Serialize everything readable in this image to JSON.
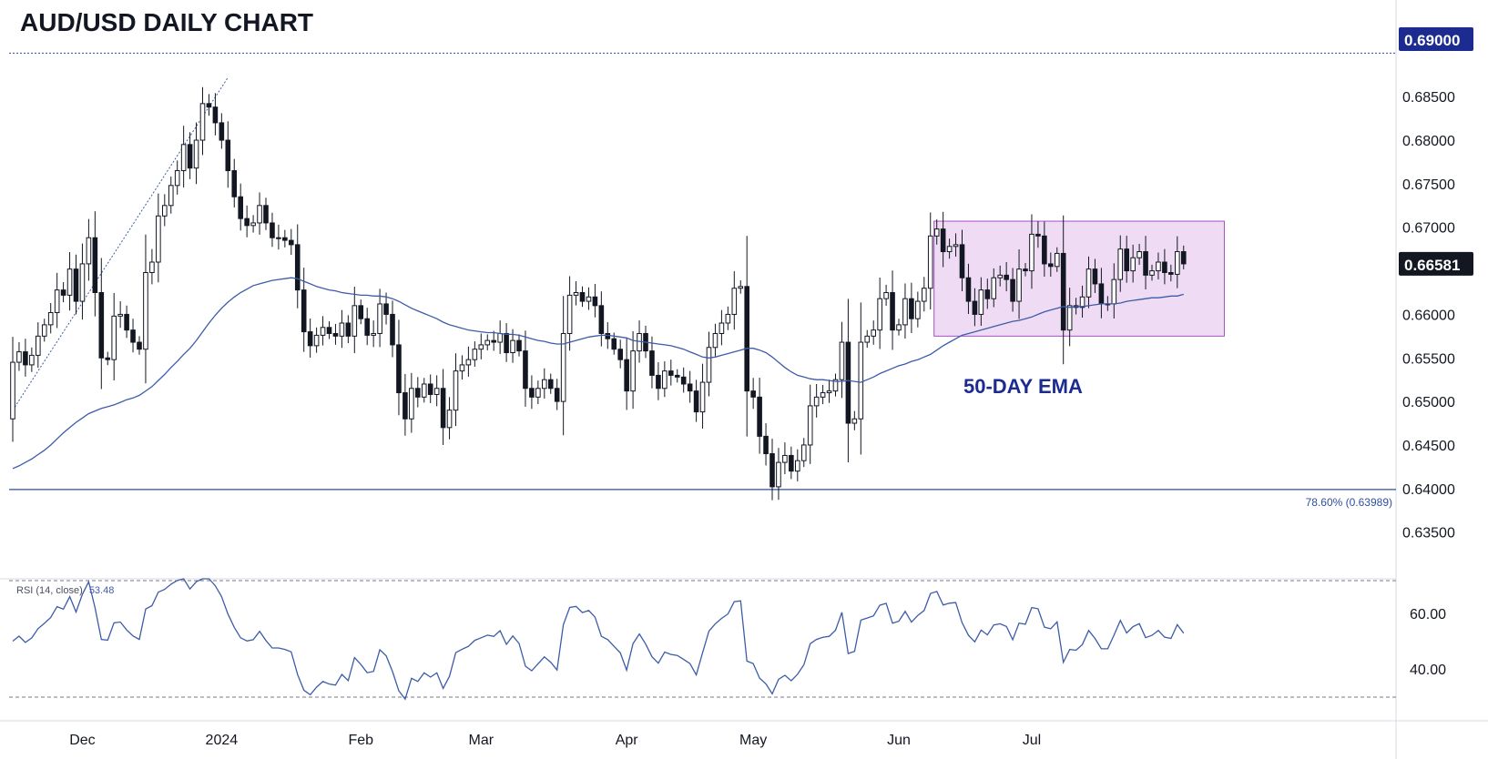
{
  "title": "AUD/USD DAILY CHART",
  "chart_data": {
    "type": "candlestick",
    "instrument": "AUD/USD",
    "timeframe": "Daily",
    "price_axis": {
      "ticks": [
        "0.68500",
        "0.68000",
        "0.67500",
        "0.67000",
        "0.66000",
        "0.65500",
        "0.65000",
        "0.64500",
        "0.64000",
        "0.63500"
      ],
      "range": [
        0.6335,
        0.6915
      ]
    },
    "date_axis": {
      "labels": [
        "Dec",
        "2024",
        "Feb",
        "Mar",
        "Apr",
        "May",
        "Jun",
        "Jul"
      ]
    },
    "series": [
      {
        "name": "AUD/USD",
        "kind": "candles",
        "open": [
          0.648,
          0.6545,
          0.6557,
          0.6542,
          0.6553,
          0.6575,
          0.6588,
          0.6602,
          0.6628,
          0.6622,
          0.6652,
          0.6615,
          0.6658,
          0.6688,
          0.6625,
          0.655,
          0.6548,
          0.6598,
          0.66,
          0.6582,
          0.6568,
          0.656,
          0.6648,
          0.666,
          0.6713,
          0.6725,
          0.6748,
          0.6765,
          0.6795,
          0.6768,
          0.68,
          0.6842,
          0.6838,
          0.682,
          0.68,
          0.6765,
          0.6735,
          0.671,
          0.6702,
          0.6705,
          0.6725,
          0.6705,
          0.6688,
          0.6688,
          0.6685,
          0.668,
          0.6628,
          0.658,
          0.6564,
          0.6576,
          0.6585,
          0.6578,
          0.6575,
          0.659,
          0.6575,
          0.661,
          0.6595,
          0.6576,
          0.6578,
          0.6612,
          0.66,
          0.6565,
          0.651,
          0.648,
          0.6515,
          0.6505,
          0.652,
          0.6508,
          0.6515,
          0.647,
          0.649,
          0.6535,
          0.6542,
          0.6548,
          0.656,
          0.6565,
          0.657,
          0.6568,
          0.6578,
          0.6556,
          0.657,
          0.6558,
          0.6515,
          0.6505,
          0.6515,
          0.6525,
          0.6515,
          0.65,
          0.6578,
          0.6622,
          0.6625,
          0.6615,
          0.662,
          0.661,
          0.6578,
          0.6572,
          0.656,
          0.6548,
          0.6512,
          0.6558,
          0.6578,
          0.6558,
          0.653,
          0.6515,
          0.6535,
          0.653,
          0.6528,
          0.652,
          0.6512,
          0.6488,
          0.6522,
          0.6562,
          0.6578,
          0.659,
          0.66,
          0.663,
          0.6632,
          0.6512,
          0.6505,
          0.646,
          0.644,
          0.6402,
          0.643,
          0.6438,
          0.642,
          0.6432,
          0.645,
          0.6495,
          0.6505,
          0.651,
          0.6512,
          0.6525,
          0.6568,
          0.6475,
          0.648,
          0.6568,
          0.6575,
          0.6582,
          0.6618,
          0.6625,
          0.6582,
          0.6588,
          0.6618,
          0.6595,
          0.6615,
          0.663,
          0.669,
          0.6698,
          0.6672,
          0.6678,
          0.668,
          0.6642,
          0.6615,
          0.66,
          0.6628,
          0.6618,
          0.6642,
          0.6645,
          0.664,
          0.6615,
          0.6652,
          0.665,
          0.6692,
          0.669,
          0.6658,
          0.6655,
          0.667,
          0.6582,
          0.661,
          0.6608,
          0.662,
          0.6652,
          0.6635,
          0.6612,
          0.6612,
          0.664,
          0.6675,
          0.665,
          0.6665,
          0.6672,
          0.6645,
          0.665,
          0.666,
          0.6648,
          0.6646,
          0.6672
        ],
        "close": [
          0.6545,
          0.6557,
          0.6542,
          0.6553,
          0.6575,
          0.6588,
          0.6602,
          0.6628,
          0.6622,
          0.6652,
          0.6615,
          0.6658,
          0.6688,
          0.6625,
          0.655,
          0.6548,
          0.6598,
          0.66,
          0.6582,
          0.6568,
          0.656,
          0.6648,
          0.666,
          0.6713,
          0.6725,
          0.6748,
          0.6765,
          0.6795,
          0.6768,
          0.68,
          0.6842,
          0.6838,
          0.682,
          0.68,
          0.6765,
          0.6735,
          0.671,
          0.6702,
          0.6705,
          0.6725,
          0.6705,
          0.6688,
          0.6688,
          0.6685,
          0.668,
          0.6628,
          0.658,
          0.6564,
          0.6576,
          0.6585,
          0.6578,
          0.6575,
          0.659,
          0.6575,
          0.661,
          0.6595,
          0.6576,
          0.6578,
          0.6612,
          0.66,
          0.6565,
          0.651,
          0.648,
          0.6515,
          0.6505,
          0.652,
          0.6508,
          0.6515,
          0.647,
          0.649,
          0.6535,
          0.6542,
          0.6548,
          0.656,
          0.6565,
          0.657,
          0.6568,
          0.6578,
          0.6556,
          0.657,
          0.6558,
          0.6515,
          0.6505,
          0.6515,
          0.6525,
          0.6515,
          0.65,
          0.6578,
          0.6622,
          0.6625,
          0.6615,
          0.662,
          0.661,
          0.6578,
          0.6572,
          0.656,
          0.6548,
          0.6512,
          0.6558,
          0.6578,
          0.6558,
          0.653,
          0.6515,
          0.6535,
          0.653,
          0.6528,
          0.652,
          0.6512,
          0.6488,
          0.6522,
          0.6562,
          0.6578,
          0.659,
          0.66,
          0.663,
          0.6632,
          0.6512,
          0.6505,
          0.646,
          0.644,
          0.6402,
          0.643,
          0.6438,
          0.642,
          0.6432,
          0.645,
          0.6495,
          0.6505,
          0.651,
          0.6512,
          0.6525,
          0.6568,
          0.6475,
          0.648,
          0.6568,
          0.6575,
          0.6582,
          0.6618,
          0.6625,
          0.6582,
          0.6588,
          0.6618,
          0.6595,
          0.6615,
          0.663,
          0.669,
          0.6698,
          0.6672,
          0.6678,
          0.668,
          0.6642,
          0.6615,
          0.66,
          0.6628,
          0.6618,
          0.6642,
          0.6645,
          0.664,
          0.6615,
          0.6652,
          0.665,
          0.6692,
          0.669,
          0.6658,
          0.6655,
          0.667,
          0.6582,
          0.661,
          0.6608,
          0.662,
          0.6652,
          0.6635,
          0.6612,
          0.6612,
          0.664,
          0.6675,
          0.665,
          0.6665,
          0.6672,
          0.6645,
          0.665,
          0.666,
          0.6648,
          0.6646,
          0.6672,
          0.6658
        ]
      },
      {
        "name": "50-DAY EMA",
        "kind": "line",
        "values": [
          0.6423,
          0.6426,
          0.643,
          0.6434,
          0.6439,
          0.6444,
          0.645,
          0.6457,
          0.6464,
          0.647,
          0.6476,
          0.6481,
          0.6486,
          0.6489,
          0.6492,
          0.6494,
          0.6496,
          0.6499,
          0.6502,
          0.6504,
          0.6507,
          0.6512,
          0.6517,
          0.6524,
          0.6531,
          0.6539,
          0.6546,
          0.6554,
          0.6561,
          0.657,
          0.658,
          0.659,
          0.6599,
          0.6607,
          0.6614,
          0.662,
          0.6625,
          0.6629,
          0.6633,
          0.6635,
          0.6637,
          0.6639,
          0.664,
          0.6641,
          0.6642,
          0.6641,
          0.6638,
          0.6635,
          0.6632,
          0.663,
          0.6628,
          0.6627,
          0.6625,
          0.6624,
          0.6623,
          0.6622,
          0.6622,
          0.6621,
          0.6621,
          0.662,
          0.6618,
          0.6615,
          0.6611,
          0.6607,
          0.6604,
          0.6601,
          0.6598,
          0.6595,
          0.6591,
          0.6588,
          0.6586,
          0.6584,
          0.6582,
          0.6581,
          0.658,
          0.6579,
          0.6579,
          0.6578,
          0.6577,
          0.6577,
          0.6576,
          0.6574,
          0.6572,
          0.657,
          0.6569,
          0.6567,
          0.6566,
          0.6566,
          0.6568,
          0.657,
          0.6572,
          0.6574,
          0.6575,
          0.6576,
          0.6576,
          0.6575,
          0.6574,
          0.6573,
          0.657,
          0.6569,
          0.6568,
          0.6567,
          0.6566,
          0.6565,
          0.6564,
          0.6562,
          0.656,
          0.6557,
          0.6554,
          0.6551,
          0.655,
          0.6551,
          0.6553,
          0.6555,
          0.6557,
          0.6559,
          0.6561,
          0.6561,
          0.6559,
          0.6556,
          0.6551,
          0.6545,
          0.6539,
          0.6534,
          0.653,
          0.6528,
          0.6526,
          0.6525,
          0.6525,
          0.6524,
          0.6523,
          0.6523,
          0.6524,
          0.6523,
          0.6522,
          0.6525,
          0.6528,
          0.6532,
          0.6535,
          0.6538,
          0.6541,
          0.6543,
          0.6546,
          0.6548,
          0.6551,
          0.6554,
          0.6559,
          0.6564,
          0.6568,
          0.6572,
          0.6576,
          0.6578,
          0.658,
          0.6582,
          0.6584,
          0.6586,
          0.6588,
          0.659,
          0.6592,
          0.6593,
          0.6595,
          0.6597,
          0.66,
          0.6603,
          0.6605,
          0.6607,
          0.6609,
          0.6608,
          0.6609,
          0.6609,
          0.661,
          0.6611,
          0.6612,
          0.6612,
          0.6612,
          0.6613,
          0.6615,
          0.6616,
          0.6617,
          0.6618,
          0.6619,
          0.6619,
          0.662,
          0.6621,
          0.6621,
          0.6623
        ]
      },
      {
        "name": "RSI (14, close)",
        "kind": "oscillator",
        "last_value": "53.48",
        "ticks": [
          "60.00",
          "40.00"
        ],
        "levels": [
          70,
          30
        ],
        "range": [
          28.5,
          72.5
        ]
      }
    ],
    "annotations": {
      "ema_label": "50-DAY EMA",
      "fib_label": "78.60% (0.63989)",
      "fib_level": 0.63989,
      "resistance_level": 0.69,
      "range_box": {
        "low": 0.6575,
        "high": 0.6707
      },
      "trend_line": {
        "from_price": 0.649,
        "to_price": 0.6872
      }
    },
    "badges": {
      "top": "0.69000",
      "last": "0.66581"
    },
    "colors": {
      "up_candle_fill": "#ffffff",
      "down_candle_fill": "#131722",
      "ema_line": "#3d5ca8",
      "box_fill": "#ecd6f2",
      "box_border": "#a84ec2",
      "badge_bg": "#131722",
      "fib_line": "#2f4ea0"
    }
  }
}
